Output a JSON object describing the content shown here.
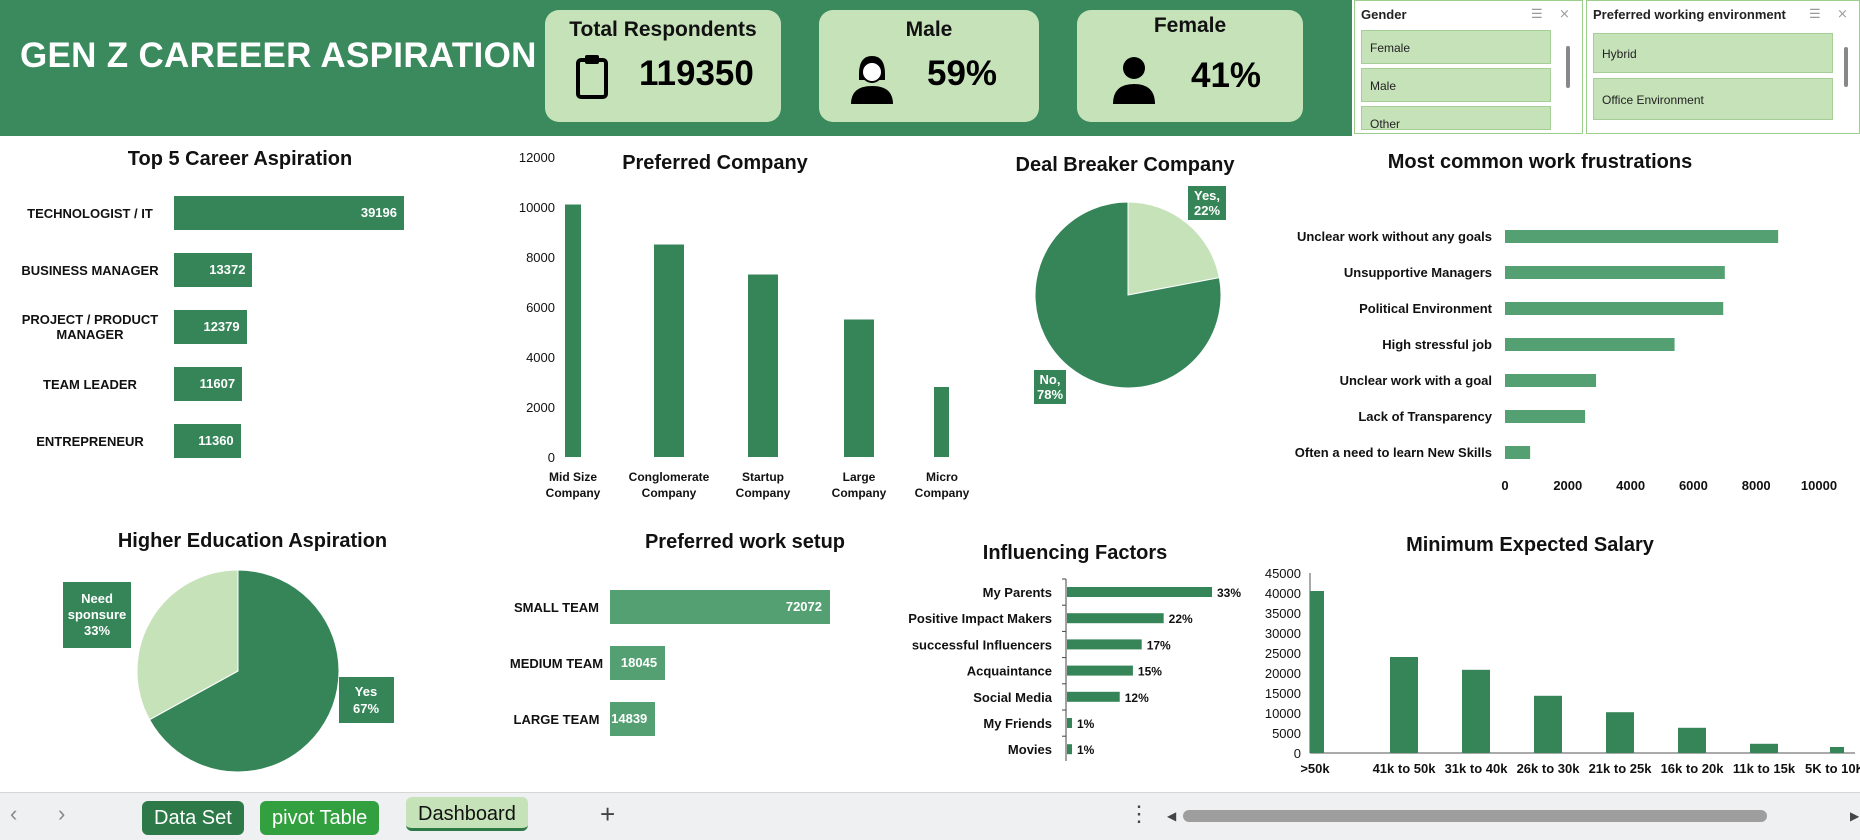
{
  "header": {
    "title": "GEN Z CAREEER ASPIRATION",
    "kpis": [
      {
        "label": "Total Respondents",
        "value": "119350",
        "icon": "clipboard-icon"
      },
      {
        "label": "Male",
        "value": "59%",
        "icon": "female-person-icon"
      },
      {
        "label": "Female",
        "value": "41%",
        "icon": "male-person-icon"
      }
    ]
  },
  "slicers": {
    "gender": {
      "title": "Gender",
      "items": [
        "Female",
        "Male",
        "Other"
      ]
    },
    "environment": {
      "title": "Preferred working environment",
      "items": [
        "Hybrid",
        "Office Environment"
      ]
    }
  },
  "colors": {
    "dark_green": "#3a8a5e",
    "mid_green": "#55a073",
    "light_green": "#c6e2b9",
    "bar_green": "#358558"
  },
  "charts": {
    "top5": {
      "title": "Top 5 Career Aspiration",
      "categories": [
        "TECHNOLOGIST / IT",
        "BUSINESS MANAGER",
        "PROJECT / PRODUCT MANAGER",
        "TEAM LEADER",
        "ENTREPRENEUR"
      ],
      "values": [
        39196,
        13372,
        12379,
        11607,
        11360
      ]
    },
    "company": {
      "title": "Preferred Company",
      "categories": [
        "Mid Size Company",
        "Conglomerate Company",
        "Startup Company",
        "Large Company",
        "Micro Company"
      ],
      "values": [
        10100,
        8500,
        7300,
        5500,
        2800
      ],
      "yticks": [
        "0",
        "2000",
        "4000",
        "6000",
        "8000",
        "10000",
        "12000"
      ]
    },
    "dealbreaker": {
      "title": "Deal Breaker Company",
      "slices": [
        {
          "label": "Yes,",
          "pct": "22%",
          "value": 22
        },
        {
          "label": "No,",
          "pct": "78%",
          "value": 78
        }
      ]
    },
    "frustrations": {
      "title": "Most common work frustrations",
      "categories": [
        "Unclear work without any goals",
        "Unsupportive Managers",
        "Political Environment",
        "High stressful job",
        "Unclear work with a goal",
        "Lack of Transparency",
        "Often a need to learn New Skills"
      ],
      "values": [
        8700,
        7000,
        6950,
        5400,
        2900,
        2550,
        800
      ],
      "xticks": [
        "0",
        "2000",
        "4000",
        "6000",
        "8000",
        "10000"
      ]
    },
    "education": {
      "title": "Higher Education Aspiration",
      "slices": [
        {
          "label": "Yes",
          "pct": "67%",
          "value": 67
        },
        {
          "label": "Need sponsure",
          "pct": "33%",
          "value": 33
        }
      ]
    },
    "setup": {
      "title": "Preferred work setup",
      "categories": [
        "SMALL TEAM",
        "MEDIUM TEAM",
        "LARGE TEAM"
      ],
      "values": [
        72072,
        18045,
        14839
      ]
    },
    "factors": {
      "title": "Influencing Factors",
      "categories": [
        "My Parents",
        "Positive Impact Makers",
        "successful Influencers",
        "Acquaintance",
        "Social Media",
        "My Friends",
        "Movies"
      ],
      "values": [
        33,
        22,
        17,
        15,
        12,
        1,
        1
      ],
      "labels": [
        "33%",
        "22%",
        "17%",
        "15%",
        "12%",
        "1%",
        "1%"
      ]
    },
    "salary": {
      "title": "Minimum Expected Salary",
      "categories": [
        ">50k",
        "41k to 50k",
        "31k to 40k",
        "26k to 30k",
        "21k to 25k",
        "16k to 20k",
        "11k to 15k",
        "5K to 10K"
      ],
      "values": [
        40500,
        24000,
        20800,
        14300,
        10200,
        6300,
        2300,
        1500
      ],
      "yticks": [
        "0",
        "5000",
        "10000",
        "15000",
        "20000",
        "25000",
        "30000",
        "35000",
        "40000",
        "45000"
      ]
    }
  },
  "tabs": {
    "items": [
      "Data Set",
      "pivot Table",
      "Dashboard"
    ],
    "add_label": "+",
    "more_label": "⋮"
  }
}
